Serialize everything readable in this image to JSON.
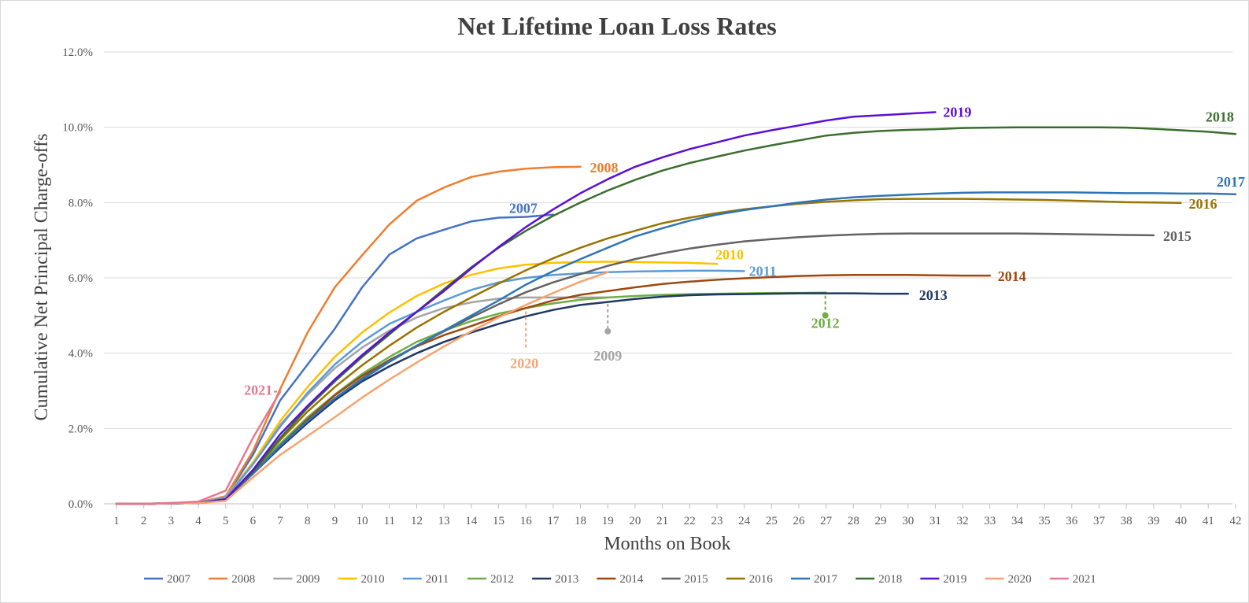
{
  "chart_data": {
    "type": "line",
    "title": "Net Lifetime Loan Loss Rates",
    "xlabel": "Months on Book",
    "ylabel": "Cumulative Net Principal Charge-offs",
    "xlim": [
      1,
      42
    ],
    "ylim": [
      0,
      12
    ],
    "y_tick_labels": [
      "0.0%",
      "2.0%",
      "4.0%",
      "6.0%",
      "8.0%",
      "10.0%",
      "12.0%"
    ],
    "x_tick_labels": [
      "1",
      "2",
      "3",
      "4",
      "5",
      "6",
      "7",
      "8",
      "9",
      "10",
      "11",
      "12",
      "13",
      "14",
      "15",
      "16",
      "17",
      "18",
      "19",
      "20",
      "21",
      "22",
      "23",
      "24",
      "25",
      "26",
      "27",
      "28",
      "29",
      "30",
      "31",
      "32",
      "33",
      "34",
      "35",
      "36",
      "37",
      "38",
      "39",
      "40",
      "41",
      "42"
    ],
    "grid": true,
    "legend_position": "bottom",
    "series": [
      {
        "name": "2007",
        "color": "#4472C4",
        "values": [
          0,
          0,
          0.02,
          0.03,
          0.18,
          1.3,
          2.75,
          3.7,
          4.65,
          5.75,
          6.62,
          7.05,
          7.28,
          7.5,
          7.6,
          7.62,
          7.68
        ]
      },
      {
        "name": "2008",
        "color": "#ED7D31",
        "values": [
          0,
          0,
          0.02,
          0.04,
          0.2,
          1.4,
          3.05,
          4.55,
          5.75,
          6.6,
          7.42,
          8.05,
          8.4,
          8.68,
          8.82,
          8.9,
          8.94,
          8.95
        ]
      },
      {
        "name": "2009",
        "color": "#A5A5A5",
        "values": [
          0,
          0,
          0.01,
          0.03,
          0.18,
          1.1,
          2.1,
          2.9,
          3.6,
          4.15,
          4.6,
          4.95,
          5.2,
          5.35,
          5.45,
          5.48,
          5.48,
          5.48,
          5.48
        ]
      },
      {
        "name": "2010",
        "color": "#FFC000",
        "values": [
          0,
          0,
          0.01,
          0.03,
          0.15,
          1.1,
          2.2,
          3.1,
          3.9,
          4.55,
          5.08,
          5.52,
          5.85,
          6.08,
          6.25,
          6.35,
          6.4,
          6.42,
          6.43,
          6.42,
          6.41,
          6.4,
          6.37
        ]
      },
      {
        "name": "2011",
        "color": "#5B9BD5",
        "values": [
          0,
          0,
          0.01,
          0.03,
          0.15,
          1.05,
          2.05,
          2.95,
          3.7,
          4.3,
          4.78,
          5.1,
          5.4,
          5.68,
          5.88,
          6.0,
          6.08,
          6.12,
          6.15,
          6.17,
          6.18,
          6.19,
          6.19,
          6.18
        ]
      },
      {
        "name": "2012",
        "color": "#70AD47",
        "values": [
          0,
          0,
          0.01,
          0.02,
          0.12,
          0.85,
          1.6,
          2.3,
          2.9,
          3.45,
          3.9,
          4.3,
          4.6,
          4.85,
          5.05,
          5.2,
          5.32,
          5.42,
          5.48,
          5.52,
          5.55,
          5.57,
          5.58,
          5.59,
          5.6,
          5.6,
          5.61
        ]
      },
      {
        "name": "2013",
        "color": "#1F3864",
        "values": [
          0,
          0,
          0.01,
          0.02,
          0.12,
          0.8,
          1.5,
          2.15,
          2.75,
          3.25,
          3.65,
          4.0,
          4.3,
          4.55,
          4.78,
          4.98,
          5.15,
          5.28,
          5.36,
          5.44,
          5.5,
          5.54,
          5.56,
          5.57,
          5.58,
          5.59,
          5.59,
          5.59,
          5.58,
          5.58
        ]
      },
      {
        "name": "2014",
        "color": "#9E480E",
        "values": [
          0,
          0,
          0.01,
          0.02,
          0.12,
          0.8,
          1.55,
          2.25,
          2.88,
          3.4,
          3.82,
          4.18,
          4.48,
          4.72,
          4.98,
          5.2,
          5.4,
          5.55,
          5.65,
          5.75,
          5.84,
          5.9,
          5.95,
          5.99,
          6.02,
          6.05,
          6.07,
          6.08,
          6.08,
          6.08,
          6.07,
          6.06,
          6.06
        ]
      },
      {
        "name": "2015",
        "color": "#636363",
        "values": [
          0,
          0,
          0.01,
          0.02,
          0.12,
          0.8,
          1.55,
          2.2,
          2.8,
          3.33,
          3.8,
          4.2,
          4.58,
          4.95,
          5.3,
          5.62,
          5.88,
          6.1,
          6.32,
          6.5,
          6.65,
          6.78,
          6.88,
          6.97,
          7.03,
          7.08,
          7.12,
          7.15,
          7.17,
          7.18,
          7.18,
          7.18,
          7.18,
          7.18,
          7.17,
          7.16,
          7.15,
          7.14,
          7.13
        ]
      },
      {
        "name": "2016",
        "color": "#997300",
        "values": [
          0,
          0,
          0.01,
          0.02,
          0.12,
          0.85,
          1.7,
          2.45,
          3.1,
          3.68,
          4.2,
          4.68,
          5.1,
          5.48,
          5.85,
          6.2,
          6.52,
          6.8,
          7.05,
          7.25,
          7.45,
          7.6,
          7.72,
          7.82,
          7.9,
          7.97,
          8.02,
          8.06,
          8.09,
          8.1,
          8.1,
          8.1,
          8.09,
          8.08,
          8.07,
          8.05,
          8.03,
          8.01,
          8.0,
          7.99
        ]
      },
      {
        "name": "2017",
        "color": "#2E75B6",
        "values": [
          0,
          0,
          0.01,
          0.02,
          0.12,
          0.8,
          1.55,
          2.2,
          2.8,
          3.3,
          3.77,
          4.2,
          4.6,
          5.0,
          5.4,
          5.82,
          6.18,
          6.5,
          6.8,
          7.1,
          7.32,
          7.52,
          7.68,
          7.8,
          7.9,
          8.0,
          8.08,
          8.14,
          8.18,
          8.21,
          8.24,
          8.26,
          8.27,
          8.27,
          8.27,
          8.27,
          8.26,
          8.25,
          8.25,
          8.24,
          8.24,
          8.22
        ]
      },
      {
        "name": "2018",
        "color": "#3B6E2E",
        "values": [
          0,
          0,
          0.01,
          0.02,
          0.12,
          0.85,
          1.75,
          2.55,
          3.25,
          3.9,
          4.5,
          5.1,
          5.7,
          6.28,
          6.8,
          7.25,
          7.65,
          8.0,
          8.32,
          8.6,
          8.85,
          9.05,
          9.22,
          9.38,
          9.52,
          9.65,
          9.78,
          9.85,
          9.9,
          9.93,
          9.95,
          9.98,
          9.99,
          10.0,
          10.0,
          10.0,
          10.0,
          9.99,
          9.96,
          9.92,
          9.88,
          9.82
        ]
      },
      {
        "name": "2019",
        "color": "#5B0FD6",
        "values": [
          0,
          0,
          0.01,
          0.02,
          0.12,
          0.9,
          1.85,
          2.6,
          3.3,
          3.95,
          4.55,
          5.1,
          5.65,
          6.25,
          6.82,
          7.35,
          7.82,
          8.25,
          8.62,
          8.95,
          9.2,
          9.42,
          9.6,
          9.78,
          9.92,
          10.05,
          10.18,
          10.28,
          10.32,
          10.36,
          10.4
        ]
      },
      {
        "name": "2020",
        "color": "#F4A470",
        "values": [
          0,
          0,
          0.01,
          0.02,
          0.08,
          0.7,
          1.3,
          1.8,
          2.3,
          2.82,
          3.3,
          3.75,
          4.18,
          4.58,
          4.95,
          5.28,
          5.6,
          5.9,
          6.15
        ]
      },
      {
        "name": "2021",
        "color": "#E57891",
        "values": [
          0,
          0,
          0.02,
          0.06,
          0.35,
          1.75,
          2.98
        ]
      }
    ],
    "annotations": [
      {
        "text": "2007",
        "series": "2007"
      },
      {
        "text": "2008",
        "series": "2008"
      },
      {
        "text": "2009",
        "series": "2009"
      },
      {
        "text": "2010",
        "series": "2010"
      },
      {
        "text": "2011",
        "series": "2011"
      },
      {
        "text": "2012",
        "series": "2012"
      },
      {
        "text": "2013",
        "series": "2013"
      },
      {
        "text": "2014",
        "series": "2014"
      },
      {
        "text": "2015",
        "series": "2015"
      },
      {
        "text": "2016",
        "series": "2016"
      },
      {
        "text": "2017",
        "series": "2017"
      },
      {
        "text": "2018",
        "series": "2018"
      },
      {
        "text": "2019",
        "series": "2019"
      },
      {
        "text": "2020",
        "series": "2020"
      },
      {
        "text": "2021",
        "series": "2021"
      }
    ]
  }
}
